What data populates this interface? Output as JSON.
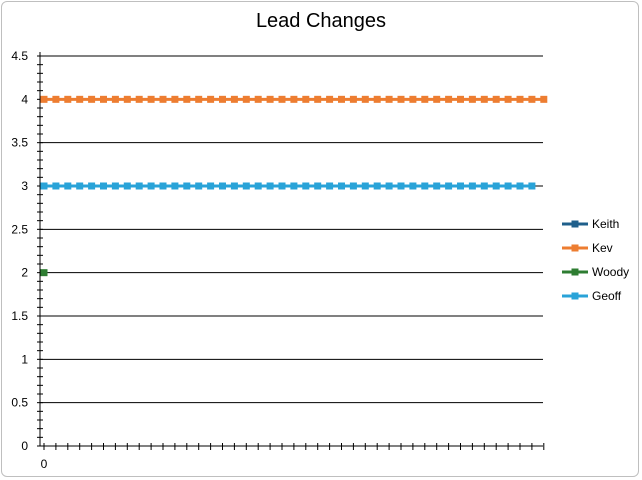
{
  "chart_data": {
    "type": "line",
    "title": "Lead Changes",
    "xlabel": "",
    "ylabel": "",
    "ylim": [
      0,
      4.5
    ],
    "y_ticks": [
      "0",
      "0.5",
      "1",
      "1.5",
      "2",
      "2.5",
      "3",
      "3.5",
      "4",
      "4.5"
    ],
    "x_tick_labels": [
      "0"
    ],
    "x_count": 43,
    "grid": true,
    "legend": "right",
    "series": [
      {
        "name": "Keith",
        "color": "#1f5f8b",
        "values": []
      },
      {
        "name": "Kev",
        "color": "#ed7d31",
        "values": [
          4,
          4,
          4,
          4,
          4,
          4,
          4,
          4,
          4,
          4,
          4,
          4,
          4,
          4,
          4,
          4,
          4,
          4,
          4,
          4,
          4,
          4,
          4,
          4,
          4,
          4,
          4,
          4,
          4,
          4,
          4,
          4,
          4,
          4,
          4,
          4,
          4,
          4,
          4,
          4,
          4,
          4,
          4
        ]
      },
      {
        "name": "Woody",
        "color": "#2e7d32",
        "values": [
          2
        ]
      },
      {
        "name": "Geoff",
        "color": "#29a3d8",
        "values": [
          3,
          3,
          3,
          3,
          3,
          3,
          3,
          3,
          3,
          3,
          3,
          3,
          3,
          3,
          3,
          3,
          3,
          3,
          3,
          3,
          3,
          3,
          3,
          3,
          3,
          3,
          3,
          3,
          3,
          3,
          3,
          3,
          3,
          3,
          3,
          3,
          3,
          3,
          3,
          3,
          3,
          3
        ]
      }
    ]
  }
}
